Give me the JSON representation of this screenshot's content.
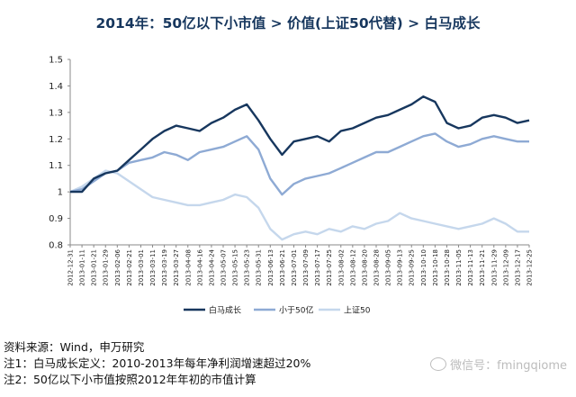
{
  "title": "2014年：50亿以下小市值 > 价值(上证50代替) > 白马成长",
  "notes": [
    "资料来源：Wind，申万研究",
    "注1：白马成长定义：2010-2013年每年净利润增速超过20%",
    "注2：50亿以下小市值按照2012年年初的市值计算"
  ],
  "watermark": {
    "icon": "wechat-icon",
    "text": "微信号：fmingqiome"
  },
  "chart_data": {
    "type": "line",
    "ylim": [
      0.8,
      1.5
    ],
    "yticks": [
      "0.8",
      "0.9",
      "1",
      "1.1",
      "1.2",
      "1.3",
      "1.4",
      "1.5"
    ],
    "x": [
      "2012-12-31",
      "2013-01-11",
      "2013-01-21",
      "2013-01-29",
      "2013-02-06",
      "2013-02-21",
      "2013-03-01",
      "2013-03-11",
      "2013-03-19",
      "2013-03-27",
      "2013-04-08",
      "2013-04-16",
      "2013-04-24",
      "2013-05-07",
      "2013-05-15",
      "2013-05-23",
      "2013-05-31",
      "2013-06-13",
      "2013-06-21",
      "2013-07-01",
      "2013-07-09",
      "2013-07-17",
      "2013-07-25",
      "2013-08-02",
      "2013-08-12",
      "2013-08-20",
      "2013-08-28",
      "2013-09-05",
      "2013-09-13",
      "2013-09-25",
      "2013-10-10",
      "2013-10-18",
      "2013-10-28",
      "2013-11-05",
      "2013-11-13",
      "2013-11-21",
      "2013-11-29",
      "2013-12-09",
      "2013-12-17",
      "2013-12-25"
    ],
    "series": [
      {
        "name": "白马成长",
        "color": "#17375e",
        "values": [
          1.0,
          1.0,
          1.05,
          1.07,
          1.08,
          1.12,
          1.16,
          1.2,
          1.23,
          1.25,
          1.24,
          1.23,
          1.26,
          1.28,
          1.31,
          1.33,
          1.27,
          1.2,
          1.14,
          1.19,
          1.2,
          1.21,
          1.19,
          1.23,
          1.24,
          1.26,
          1.28,
          1.29,
          1.31,
          1.33,
          1.36,
          1.34,
          1.26,
          1.24,
          1.25,
          1.28,
          1.29,
          1.28,
          1.26,
          1.27
        ]
      },
      {
        "name": "小于50亿",
        "color": "#8eaad4",
        "values": [
          1.0,
          1.01,
          1.04,
          1.07,
          1.08,
          1.11,
          1.12,
          1.13,
          1.15,
          1.14,
          1.12,
          1.15,
          1.16,
          1.17,
          1.19,
          1.21,
          1.16,
          1.05,
          0.99,
          1.03,
          1.05,
          1.06,
          1.07,
          1.09,
          1.11,
          1.13,
          1.15,
          1.15,
          1.17,
          1.19,
          1.21,
          1.22,
          1.19,
          1.17,
          1.18,
          1.2,
          1.21,
          1.2,
          1.19,
          1.19
        ]
      },
      {
        "name": "上证50",
        "color": "#c5d7ec",
        "values": [
          1.0,
          1.02,
          1.05,
          1.08,
          1.07,
          1.04,
          1.01,
          0.98,
          0.97,
          0.96,
          0.95,
          0.95,
          0.96,
          0.97,
          0.99,
          0.98,
          0.94,
          0.86,
          0.82,
          0.84,
          0.85,
          0.84,
          0.86,
          0.85,
          0.87,
          0.86,
          0.88,
          0.89,
          0.92,
          0.9,
          0.89,
          0.88,
          0.87,
          0.86,
          0.87,
          0.88,
          0.9,
          0.88,
          0.85,
          0.85
        ]
      }
    ],
    "legend_position": "bottom"
  }
}
